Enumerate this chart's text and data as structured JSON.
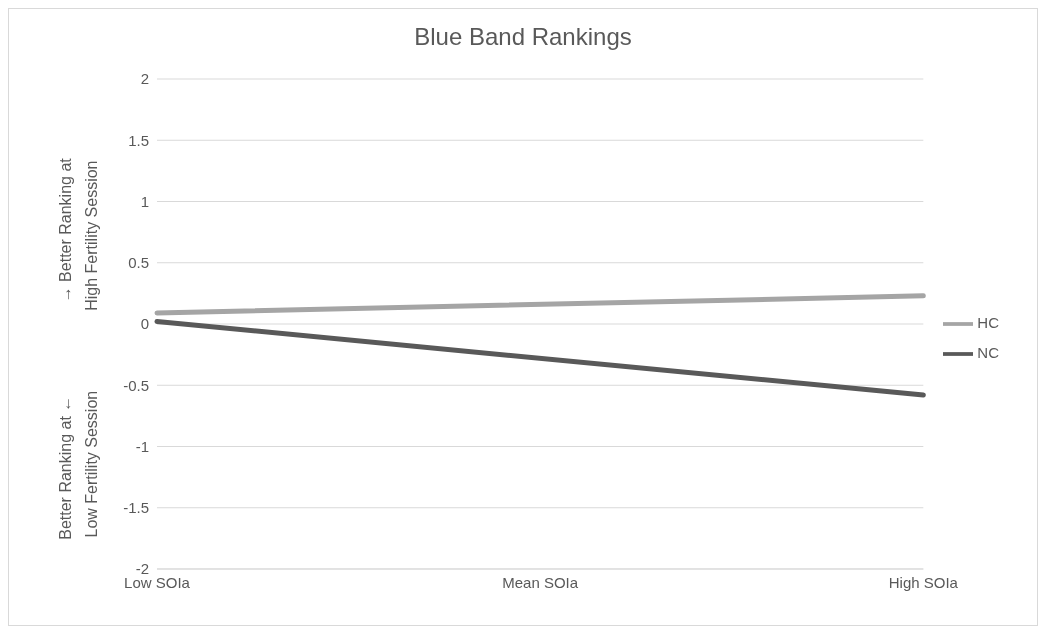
{
  "chart_data": {
    "type": "line",
    "title": "Blue Band Rankings",
    "ylabel": "Better Ranking at ←                     → Better Ranking at\nLow Fertility Session                  High Fertility Session",
    "categories": [
      "Low SOIa",
      "Mean SOIa",
      "High SOIa"
    ],
    "series": [
      {
        "name": "NC",
        "color": "#595959",
        "values": [
          0.02,
          null,
          -0.58
        ]
      },
      {
        "name": "HC",
        "color": "#a5a5a5",
        "values": [
          0.09,
          null,
          0.23
        ]
      }
    ],
    "ylim": [
      -2,
      2
    ],
    "yticks": [
      -2,
      -1.5,
      -1,
      -0.5,
      0,
      0.5,
      1,
      1.5,
      2
    ],
    "grid": "y",
    "legend": "right",
    "marker": "none"
  }
}
